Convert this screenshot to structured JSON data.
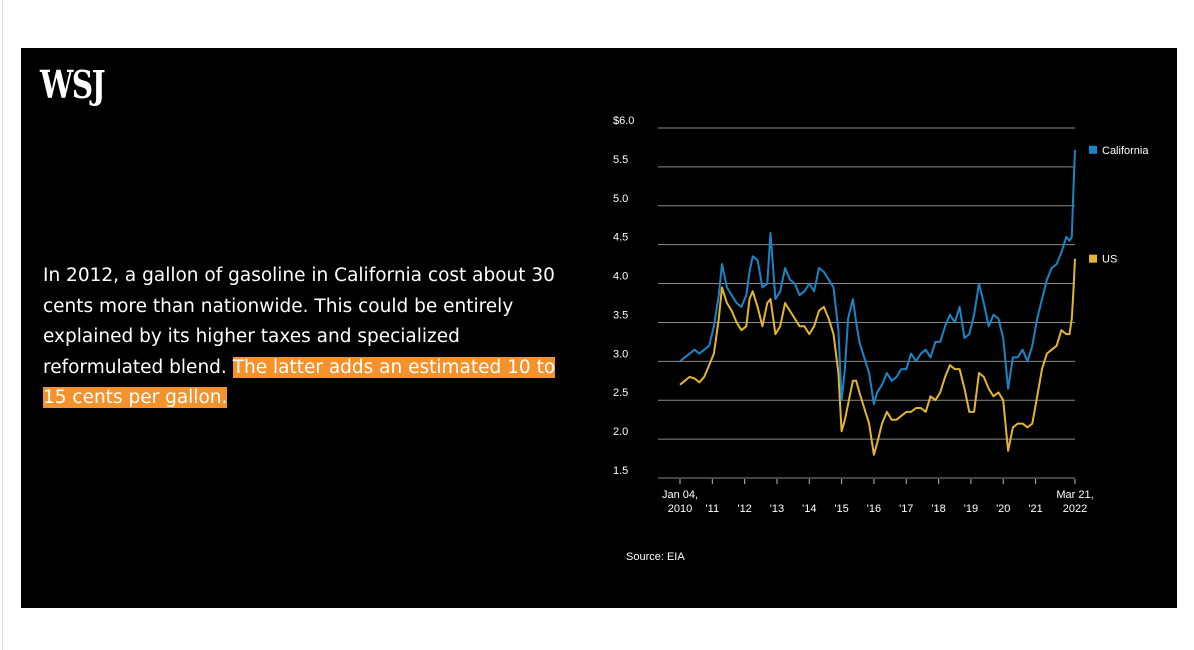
{
  "logo": "WSJ",
  "text": {
    "main": "In 2012, a gallon of gasoline in California cost about 30 cents more than nationwide. This could be entirely explained by its higher taxes and specialized reformulated blend.",
    "highlight": "The latter adds an estimated 10 to 15 cents per gallon."
  },
  "colors": {
    "california": "#1a85c6",
    "us": "#e3b52f",
    "highlight": "#f5922c",
    "grid": "#8a8a8a"
  },
  "chart_data": {
    "type": "line",
    "title": "",
    "source": "Source: EIA",
    "ylim": [
      1.5,
      6.0
    ],
    "y_ticks": [
      "$6.0",
      "5.5",
      "5.0",
      "4.5",
      "4.0",
      "3.5",
      "3.0",
      "2.5",
      "2.0",
      "1.5"
    ],
    "y_tick_values": [
      6.0,
      5.5,
      5.0,
      4.5,
      4.0,
      3.5,
      3.0,
      2.5,
      2.0,
      1.5
    ],
    "x_ticks": [
      {
        "x": 2010.0,
        "line1": "Jan 04,",
        "line2": "2010"
      },
      {
        "x": 2011.0,
        "line2": "'11"
      },
      {
        "x": 2012.0,
        "line2": "'12"
      },
      {
        "x": 2013.0,
        "line2": "'13"
      },
      {
        "x": 2014.0,
        "line2": "'14"
      },
      {
        "x": 2015.0,
        "line2": "'15"
      },
      {
        "x": 2016.0,
        "line2": "'16"
      },
      {
        "x": 2017.0,
        "line2": "'17"
      },
      {
        "x": 2018.0,
        "line2": "'18"
      },
      {
        "x": 2019.0,
        "line2": "'19"
      },
      {
        "x": 2020.0,
        "line2": "'20"
      },
      {
        "x": 2021.0,
        "line2": "'21"
      },
      {
        "x": 2022.22,
        "line1": "Mar 21,",
        "line2": "2022"
      }
    ],
    "xlim": [
      2010.0,
      2022.22
    ],
    "legend_position": "right",
    "series": [
      {
        "name": "California",
        "x": [
          2010.0,
          2010.15,
          2010.3,
          2010.45,
          2010.6,
          2010.75,
          2010.9,
          2011.05,
          2011.2,
          2011.3,
          2011.45,
          2011.6,
          2011.75,
          2011.9,
          2012.05,
          2012.15,
          2012.25,
          2012.4,
          2012.55,
          2012.7,
          2012.8,
          2012.95,
          2013.1,
          2013.25,
          2013.4,
          2013.55,
          2013.7,
          2013.85,
          2014.0,
          2014.15,
          2014.3,
          2014.45,
          2014.6,
          2014.75,
          2014.9,
          2015.0,
          2015.1,
          2015.2,
          2015.35,
          2015.45,
          2015.55,
          2015.7,
          2015.85,
          2016.0,
          2016.1,
          2016.25,
          2016.4,
          2016.55,
          2016.7,
          2016.85,
          2017.0,
          2017.15,
          2017.3,
          2017.45,
          2017.6,
          2017.75,
          2017.9,
          2018.05,
          2018.2,
          2018.35,
          2018.5,
          2018.65,
          2018.8,
          2018.95,
          2019.1,
          2019.25,
          2019.4,
          2019.55,
          2019.7,
          2019.85,
          2020.0,
          2020.15,
          2020.3,
          2020.45,
          2020.6,
          2020.75,
          2020.9,
          2021.05,
          2021.2,
          2021.35,
          2021.5,
          2021.65,
          2021.8,
          2021.95,
          2022.05,
          2022.12,
          2022.17,
          2022.22
        ],
        "values": [
          3.0,
          3.05,
          3.1,
          3.15,
          3.1,
          3.15,
          3.2,
          3.45,
          3.85,
          4.25,
          3.95,
          3.85,
          3.75,
          3.7,
          3.85,
          4.15,
          4.35,
          4.3,
          3.95,
          4.0,
          4.65,
          3.8,
          3.9,
          4.2,
          4.05,
          4.0,
          3.85,
          3.9,
          4.0,
          3.9,
          4.2,
          4.15,
          4.05,
          3.95,
          3.4,
          2.5,
          2.9,
          3.55,
          3.8,
          3.5,
          3.25,
          3.05,
          2.85,
          2.45,
          2.6,
          2.7,
          2.85,
          2.75,
          2.8,
          2.9,
          2.9,
          3.1,
          3.0,
          3.1,
          3.15,
          3.05,
          3.25,
          3.25,
          3.45,
          3.6,
          3.5,
          3.7,
          3.3,
          3.35,
          3.6,
          4.0,
          3.75,
          3.45,
          3.6,
          3.55,
          3.3,
          2.65,
          3.05,
          3.05,
          3.15,
          3.0,
          3.2,
          3.55,
          3.8,
          4.05,
          4.2,
          4.25,
          4.4,
          4.6,
          4.55,
          4.6,
          5.2,
          5.72
        ]
      },
      {
        "name": "US",
        "x": [
          2010.0,
          2010.15,
          2010.3,
          2010.45,
          2010.6,
          2010.75,
          2010.9,
          2011.05,
          2011.2,
          2011.3,
          2011.45,
          2011.6,
          2011.75,
          2011.9,
          2012.05,
          2012.15,
          2012.25,
          2012.4,
          2012.55,
          2012.7,
          2012.8,
          2012.95,
          2013.1,
          2013.25,
          2013.4,
          2013.55,
          2013.7,
          2013.85,
          2014.0,
          2014.15,
          2014.3,
          2014.45,
          2014.6,
          2014.75,
          2014.9,
          2015.0,
          2015.1,
          2015.2,
          2015.35,
          2015.45,
          2015.55,
          2015.7,
          2015.85,
          2016.0,
          2016.1,
          2016.25,
          2016.4,
          2016.55,
          2016.7,
          2016.85,
          2017.0,
          2017.15,
          2017.3,
          2017.45,
          2017.6,
          2017.75,
          2017.9,
          2018.05,
          2018.2,
          2018.35,
          2018.5,
          2018.65,
          2018.8,
          2018.95,
          2019.1,
          2019.25,
          2019.4,
          2019.55,
          2019.7,
          2019.85,
          2020.0,
          2020.15,
          2020.3,
          2020.45,
          2020.6,
          2020.75,
          2020.9,
          2021.05,
          2021.2,
          2021.35,
          2021.5,
          2021.65,
          2021.8,
          2021.95,
          2022.05,
          2022.12,
          2022.17,
          2022.22
        ],
        "values": [
          2.7,
          2.75,
          2.8,
          2.78,
          2.73,
          2.8,
          2.95,
          3.1,
          3.55,
          3.95,
          3.75,
          3.65,
          3.5,
          3.4,
          3.45,
          3.8,
          3.9,
          3.7,
          3.45,
          3.75,
          3.8,
          3.35,
          3.45,
          3.75,
          3.65,
          3.55,
          3.45,
          3.45,
          3.35,
          3.45,
          3.65,
          3.7,
          3.55,
          3.35,
          2.85,
          2.1,
          2.25,
          2.45,
          2.75,
          2.75,
          2.6,
          2.4,
          2.2,
          1.8,
          1.95,
          2.2,
          2.35,
          2.25,
          2.25,
          2.3,
          2.35,
          2.35,
          2.4,
          2.4,
          2.35,
          2.55,
          2.5,
          2.6,
          2.8,
          2.95,
          2.9,
          2.9,
          2.65,
          2.35,
          2.35,
          2.85,
          2.8,
          2.65,
          2.55,
          2.6,
          2.5,
          1.85,
          2.15,
          2.2,
          2.2,
          2.15,
          2.2,
          2.55,
          2.9,
          3.1,
          3.15,
          3.2,
          3.4,
          3.35,
          3.35,
          3.55,
          3.9,
          4.32
        ]
      }
    ]
  }
}
